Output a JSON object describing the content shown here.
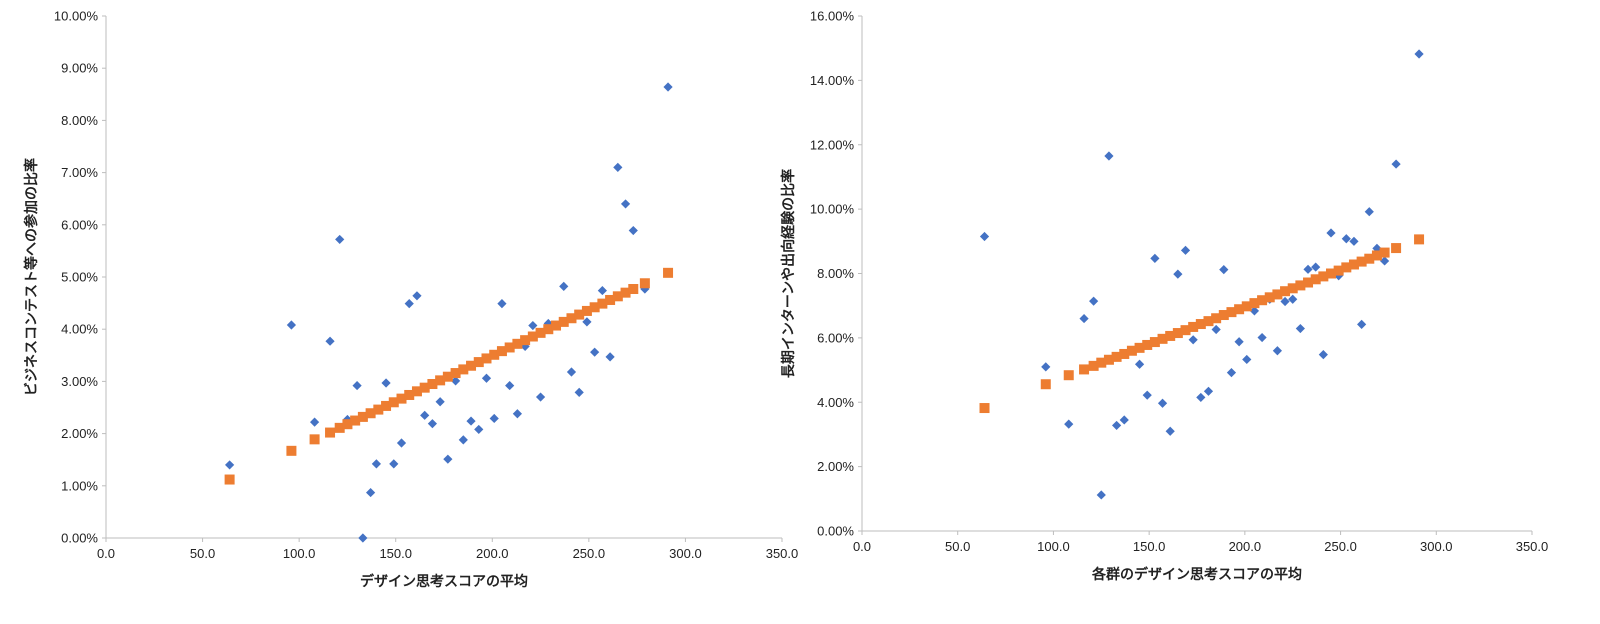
{
  "chart_data": [
    {
      "type": "scatter",
      "xlabel": "デザイン思考スコアの平均",
      "ylabel": "ビジネスコンテスト等への参加の比率",
      "xlim": [
        0,
        350
      ],
      "ylim": [
        0,
        10
      ],
      "x_ticks": [
        "0.0",
        "50.0",
        "100.0",
        "150.0",
        "200.0",
        "250.0",
        "300.0",
        "350.0"
      ],
      "y_ticks": [
        "0.00%",
        "1.00%",
        "2.00%",
        "3.00%",
        "4.00%",
        "5.00%",
        "6.00%",
        "7.00%",
        "8.00%",
        "9.00%",
        "10.00%"
      ],
      "grid": false,
      "series": [
        {
          "marker": "diamond",
          "color": "#4472C4",
          "points": [
            [
              64,
              1.4
            ],
            [
              96,
              4.08
            ],
            [
              108,
              2.22
            ],
            [
              116,
              3.77
            ],
            [
              121,
              5.72
            ],
            [
              125,
              2.27
            ],
            [
              130,
              2.92
            ],
            [
              133,
              0.0
            ],
            [
              137,
              0.87
            ],
            [
              140,
              1.42
            ],
            [
              145,
              2.97
            ],
            [
              149,
              1.42
            ],
            [
              153,
              1.82
            ],
            [
              157,
              4.49
            ],
            [
              161,
              4.64
            ],
            [
              165,
              2.35
            ],
            [
              169,
              2.19
            ],
            [
              173,
              2.61
            ],
            [
              177,
              1.51
            ],
            [
              181,
              3.01
            ],
            [
              185,
              1.88
            ],
            [
              189,
              2.24
            ],
            [
              193,
              2.08
            ],
            [
              197,
              3.06
            ],
            [
              201,
              2.29
            ],
            [
              205,
              4.49
            ],
            [
              209,
              2.92
            ],
            [
              213,
              2.38
            ],
            [
              217,
              3.67
            ],
            [
              221,
              4.07
            ],
            [
              225,
              2.7
            ],
            [
              229,
              4.11
            ],
            [
              237,
              4.82
            ],
            [
              241,
              3.18
            ],
            [
              245,
              2.79
            ],
            [
              249,
              4.14
            ],
            [
              253,
              3.56
            ],
            [
              257,
              4.74
            ],
            [
              261,
              3.47
            ],
            [
              265,
              7.1
            ],
            [
              269,
              6.4
            ],
            [
              273,
              5.89
            ],
            [
              279,
              4.77
            ],
            [
              291,
              8.64
            ]
          ]
        },
        {
          "marker": "square",
          "color": "#ED7D31",
          "points": [
            [
              64,
              1.12
            ],
            [
              96,
              1.67
            ],
            [
              108,
              1.89
            ],
            [
              116,
              2.02
            ],
            [
              121,
              2.11
            ],
            [
              125,
              2.18
            ],
            [
              129,
              2.25
            ],
            [
              133,
              2.32
            ],
            [
              137,
              2.39
            ],
            [
              141,
              2.46
            ],
            [
              145,
              2.53
            ],
            [
              149,
              2.6
            ],
            [
              153,
              2.67
            ],
            [
              157,
              2.74
            ],
            [
              161,
              2.81
            ],
            [
              165,
              2.88
            ],
            [
              169,
              2.95
            ],
            [
              173,
              3.02
            ],
            [
              177,
              3.09
            ],
            [
              181,
              3.16
            ],
            [
              185,
              3.23
            ],
            [
              189,
              3.3
            ],
            [
              193,
              3.37
            ],
            [
              197,
              3.44
            ],
            [
              201,
              3.51
            ],
            [
              205,
              3.58
            ],
            [
              209,
              3.65
            ],
            [
              213,
              3.72
            ],
            [
              217,
              3.79
            ],
            [
              221,
              3.86
            ],
            [
              225,
              3.93
            ],
            [
              229,
              4.0
            ],
            [
              233,
              4.07
            ],
            [
              237,
              4.14
            ],
            [
              241,
              4.21
            ],
            [
              245,
              4.28
            ],
            [
              249,
              4.35
            ],
            [
              253,
              4.42
            ],
            [
              257,
              4.49
            ],
            [
              261,
              4.56
            ],
            [
              265,
              4.63
            ],
            [
              269,
              4.7
            ],
            [
              273,
              4.77
            ],
            [
              279,
              4.88
            ],
            [
              291,
              5.08
            ]
          ]
        }
      ]
    },
    {
      "type": "scatter",
      "xlabel": "各群のデザイン思考スコアの平均",
      "ylabel": "長期インターンや出向経験の比率",
      "xlim": [
        0,
        350
      ],
      "ylim": [
        0,
        16
      ],
      "x_ticks": [
        "0.0",
        "50.0",
        "100.0",
        "150.0",
        "200.0",
        "250.0",
        "300.0",
        "350.0"
      ],
      "y_ticks": [
        "0.00%",
        "2.00%",
        "4.00%",
        "6.00%",
        "8.00%",
        "10.00%",
        "12.00%",
        "14.00%",
        "16.00%"
      ],
      "grid": false,
      "series": [
        {
          "marker": "diamond",
          "color": "#4472C4",
          "points": [
            [
              64,
              9.15
            ],
            [
              96,
              5.1
            ],
            [
              108,
              3.32
            ],
            [
              116,
              6.6
            ],
            [
              121,
              7.14
            ],
            [
              125,
              1.12
            ],
            [
              129,
              11.65
            ],
            [
              133,
              3.28
            ],
            [
              137,
              3.45
            ],
            [
              145,
              5.18
            ],
            [
              149,
              4.22
            ],
            [
              153,
              8.47
            ],
            [
              157,
              3.97
            ],
            [
              161,
              3.1
            ],
            [
              165,
              7.98
            ],
            [
              169,
              8.72
            ],
            [
              173,
              5.94
            ],
            [
              177,
              4.15
            ],
            [
              181,
              4.34
            ],
            [
              185,
              6.26
            ],
            [
              189,
              8.12
            ],
            [
              193,
              4.92
            ],
            [
              197,
              5.88
            ],
            [
              201,
              5.33
            ],
            [
              205,
              6.84
            ],
            [
              209,
              6.01
            ],
            [
              213,
              7.2
            ],
            [
              217,
              5.6
            ],
            [
              221,
              7.13
            ],
            [
              225,
              7.2
            ],
            [
              229,
              6.29
            ],
            [
              233,
              8.13
            ],
            [
              237,
              8.2
            ],
            [
              241,
              5.48
            ],
            [
              245,
              9.26
            ],
            [
              249,
              7.93
            ],
            [
              253,
              9.08
            ],
            [
              257,
              9.0
            ],
            [
              261,
              6.42
            ],
            [
              265,
              9.92
            ],
            [
              269,
              8.78
            ],
            [
              273,
              8.39
            ],
            [
              279,
              11.4
            ],
            [
              291,
              14.82
            ]
          ]
        },
        {
          "marker": "square",
          "color": "#ED7D31",
          "points": [
            [
              64,
              3.82
            ],
            [
              96,
              4.56
            ],
            [
              108,
              4.84
            ],
            [
              116,
              5.02
            ],
            [
              121,
              5.13
            ],
            [
              125,
              5.23
            ],
            [
              129,
              5.32
            ],
            [
              133,
              5.41
            ],
            [
              137,
              5.5
            ],
            [
              141,
              5.6
            ],
            [
              145,
              5.69
            ],
            [
              149,
              5.78
            ],
            [
              153,
              5.87
            ],
            [
              157,
              5.97
            ],
            [
              161,
              6.06
            ],
            [
              165,
              6.15
            ],
            [
              169,
              6.24
            ],
            [
              173,
              6.34
            ],
            [
              177,
              6.43
            ],
            [
              181,
              6.52
            ],
            [
              185,
              6.61
            ],
            [
              189,
              6.71
            ],
            [
              193,
              6.8
            ],
            [
              197,
              6.89
            ],
            [
              201,
              6.98
            ],
            [
              205,
              7.08
            ],
            [
              209,
              7.17
            ],
            [
              213,
              7.26
            ],
            [
              217,
              7.35
            ],
            [
              221,
              7.45
            ],
            [
              225,
              7.54
            ],
            [
              229,
              7.63
            ],
            [
              233,
              7.72
            ],
            [
              237,
              7.82
            ],
            [
              241,
              7.91
            ],
            [
              245,
              8.0
            ],
            [
              249,
              8.09
            ],
            [
              253,
              8.19
            ],
            [
              257,
              8.28
            ],
            [
              261,
              8.37
            ],
            [
              265,
              8.46
            ],
            [
              269,
              8.56
            ],
            [
              273,
              8.65
            ],
            [
              279,
              8.79
            ],
            [
              291,
              9.06
            ]
          ]
        }
      ]
    }
  ]
}
